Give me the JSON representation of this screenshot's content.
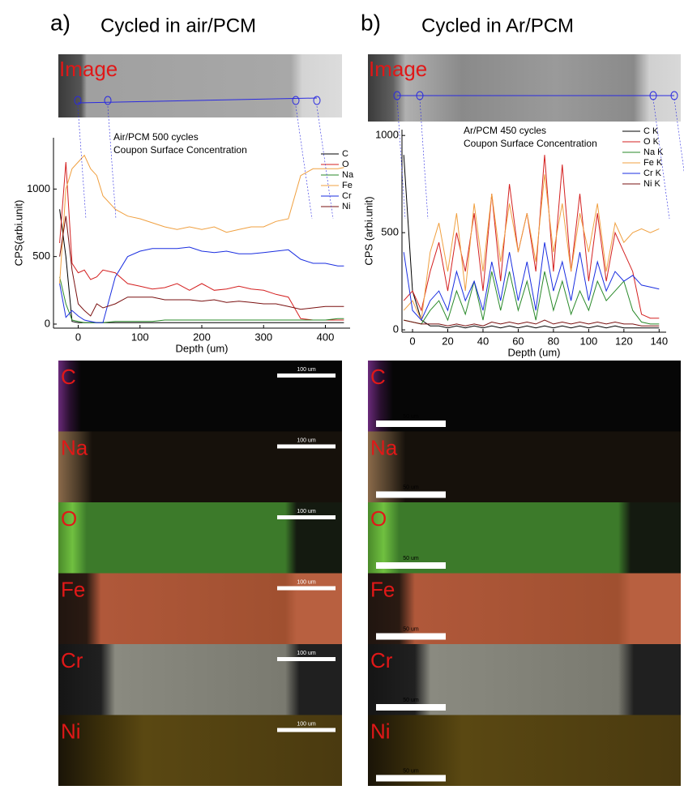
{
  "figure": {
    "panels": [
      {
        "letter": "a)",
        "title": "Cycled in air/PCM",
        "image_label": "Image",
        "maps": [
          {
            "element": "C",
            "scale": "100 um"
          },
          {
            "element": "Na",
            "scale": "100 um"
          },
          {
            "element": "O",
            "scale": "100 um"
          },
          {
            "element": "Fe",
            "scale": "100 um"
          },
          {
            "element": "Cr",
            "scale": "100 um"
          },
          {
            "element": "Ni",
            "scale": "100 um"
          }
        ]
      },
      {
        "letter": "b)",
        "title": "Cycled in Ar/PCM",
        "image_label": "Image",
        "maps": [
          {
            "element": "C",
            "scale": "50 um"
          },
          {
            "element": "Na",
            "scale": "50 um"
          },
          {
            "element": "O",
            "scale": "50 um"
          },
          {
            "element": "Fe",
            "scale": "50 um"
          },
          {
            "element": "Cr",
            "scale": "50 um"
          },
          {
            "element": "Ni",
            "scale": "50 um"
          }
        ]
      }
    ]
  },
  "chart_data": [
    {
      "type": "line",
      "annotations": [
        "Air/PCM 500 cycles",
        "Coupon Surface Concentration"
      ],
      "x_label": "Depth (um)",
      "y_label": "CPS(arbi.unit)",
      "xlim": [
        -40,
        440
      ],
      "ylim": [
        -30,
        1380
      ],
      "xticks": [
        0,
        100,
        200,
        300,
        400
      ],
      "yticks": [
        0,
        500,
        1000
      ],
      "x": [
        -30,
        -20,
        -10,
        0,
        10,
        20,
        30,
        40,
        60,
        80,
        100,
        120,
        140,
        160,
        180,
        200,
        220,
        240,
        260,
        280,
        300,
        320,
        340,
        360,
        380,
        400,
        420,
        430
      ],
      "series": [
        {
          "name": "C",
          "color": "#000000",
          "values": [
            850,
            500,
            20,
            10,
            10,
            10,
            10,
            10,
            10,
            10,
            10,
            10,
            10,
            10,
            10,
            10,
            10,
            10,
            10,
            10,
            10,
            10,
            10,
            10,
            10,
            10,
            10,
            10
          ]
        },
        {
          "name": "O",
          "color": "#d42020",
          "values": [
            600,
            1200,
            450,
            380,
            400,
            330,
            350,
            400,
            380,
            300,
            280,
            260,
            270,
            300,
            250,
            300,
            250,
            260,
            280,
            260,
            250,
            220,
            200,
            40,
            30,
            30,
            30,
            30
          ]
        },
        {
          "name": "Na",
          "color": "#2a8a2a",
          "values": [
            350,
            150,
            30,
            20,
            10,
            10,
            10,
            10,
            20,
            20,
            20,
            20,
            30,
            30,
            30,
            30,
            30,
            30,
            30,
            30,
            30,
            30,
            30,
            30,
            30,
            30,
            40,
            40
          ]
        },
        {
          "name": "Fe",
          "color": "#f0a040",
          "values": [
            300,
            1000,
            1150,
            1200,
            1250,
            1150,
            1100,
            950,
            850,
            800,
            780,
            750,
            720,
            700,
            720,
            700,
            720,
            680,
            700,
            720,
            720,
            760,
            780,
            1100,
            1150,
            1150,
            1150,
            1160
          ]
        },
        {
          "name": "Cr",
          "color": "#1a2ee0",
          "values": [
            300,
            50,
            100,
            60,
            30,
            20,
            10,
            10,
            350,
            500,
            540,
            560,
            560,
            560,
            570,
            540,
            530,
            540,
            520,
            520,
            530,
            540,
            550,
            480,
            450,
            450,
            430,
            430
          ]
        },
        {
          "name": "Ni",
          "color": "#7a1010",
          "values": [
            500,
            800,
            400,
            150,
            100,
            60,
            150,
            120,
            150,
            200,
            200,
            200,
            180,
            180,
            180,
            170,
            180,
            160,
            170,
            160,
            150,
            150,
            130,
            110,
            120,
            130,
            130,
            130
          ]
        }
      ]
    },
    {
      "type": "line",
      "annotations": [
        "Ar/PCM 450 cycles",
        "Coupon Surface Concentration"
      ],
      "x_label": "Depth (um)",
      "y_label": "CPS (arbi.unit)",
      "xlim": [
        -6,
        144
      ],
      "ylim": [
        -12,
        1030
      ],
      "xticks": [
        0,
        20,
        40,
        60,
        80,
        100,
        120,
        140
      ],
      "yticks": [
        0,
        500,
        1000
      ],
      "x": [
        -5,
        0,
        5,
        10,
        15,
        20,
        25,
        30,
        35,
        40,
        45,
        50,
        55,
        60,
        65,
        70,
        75,
        80,
        85,
        90,
        95,
        100,
        105,
        110,
        115,
        120,
        125,
        130,
        135,
        140
      ],
      "series": [
        {
          "name": "C K",
          "color": "#000000",
          "values": [
            900,
            200,
            50,
            20,
            20,
            10,
            20,
            10,
            20,
            10,
            20,
            10,
            20,
            10,
            20,
            10,
            20,
            10,
            20,
            10,
            20,
            10,
            20,
            10,
            20,
            10,
            10,
            10,
            10,
            10
          ]
        },
        {
          "name": "O K",
          "color": "#d42020",
          "values": [
            150,
            200,
            100,
            300,
            450,
            200,
            500,
            300,
            600,
            200,
            700,
            250,
            750,
            400,
            600,
            300,
            900,
            300,
            850,
            300,
            700,
            250,
            600,
            250,
            500,
            400,
            300,
            80,
            60,
            60
          ]
        },
        {
          "name": "Na K",
          "color": "#2a8a2a",
          "values": [
            50,
            40,
            30,
            100,
            150,
            50,
            200,
            80,
            250,
            50,
            300,
            100,
            300,
            100,
            250,
            50,
            300,
            100,
            250,
            80,
            200,
            100,
            250,
            150,
            200,
            250,
            100,
            40,
            30,
            30
          ]
        },
        {
          "name": "Fe K",
          "color": "#f0a040",
          "values": [
            100,
            150,
            50,
            400,
            550,
            300,
            600,
            200,
            650,
            300,
            700,
            350,
            650,
            400,
            600,
            350,
            800,
            400,
            650,
            300,
            600,
            400,
            650,
            300,
            550,
            450,
            500,
            520,
            500,
            520
          ]
        },
        {
          "name": "Cr K",
          "color": "#1a2ee0",
          "values": [
            400,
            100,
            50,
            150,
            200,
            100,
            300,
            150,
            250,
            100,
            350,
            150,
            400,
            150,
            350,
            100,
            450,
            200,
            350,
            150,
            400,
            150,
            350,
            200,
            300,
            250,
            280,
            230,
            220,
            210
          ]
        },
        {
          "name": "Ni K",
          "color": "#7a1010",
          "values": [
            50,
            40,
            30,
            30,
            30,
            20,
            30,
            20,
            30,
            20,
            40,
            30,
            40,
            30,
            40,
            30,
            50,
            30,
            40,
            30,
            40,
            30,
            40,
            30,
            40,
            30,
            30,
            20,
            20,
            20
          ]
        }
      ]
    }
  ]
}
